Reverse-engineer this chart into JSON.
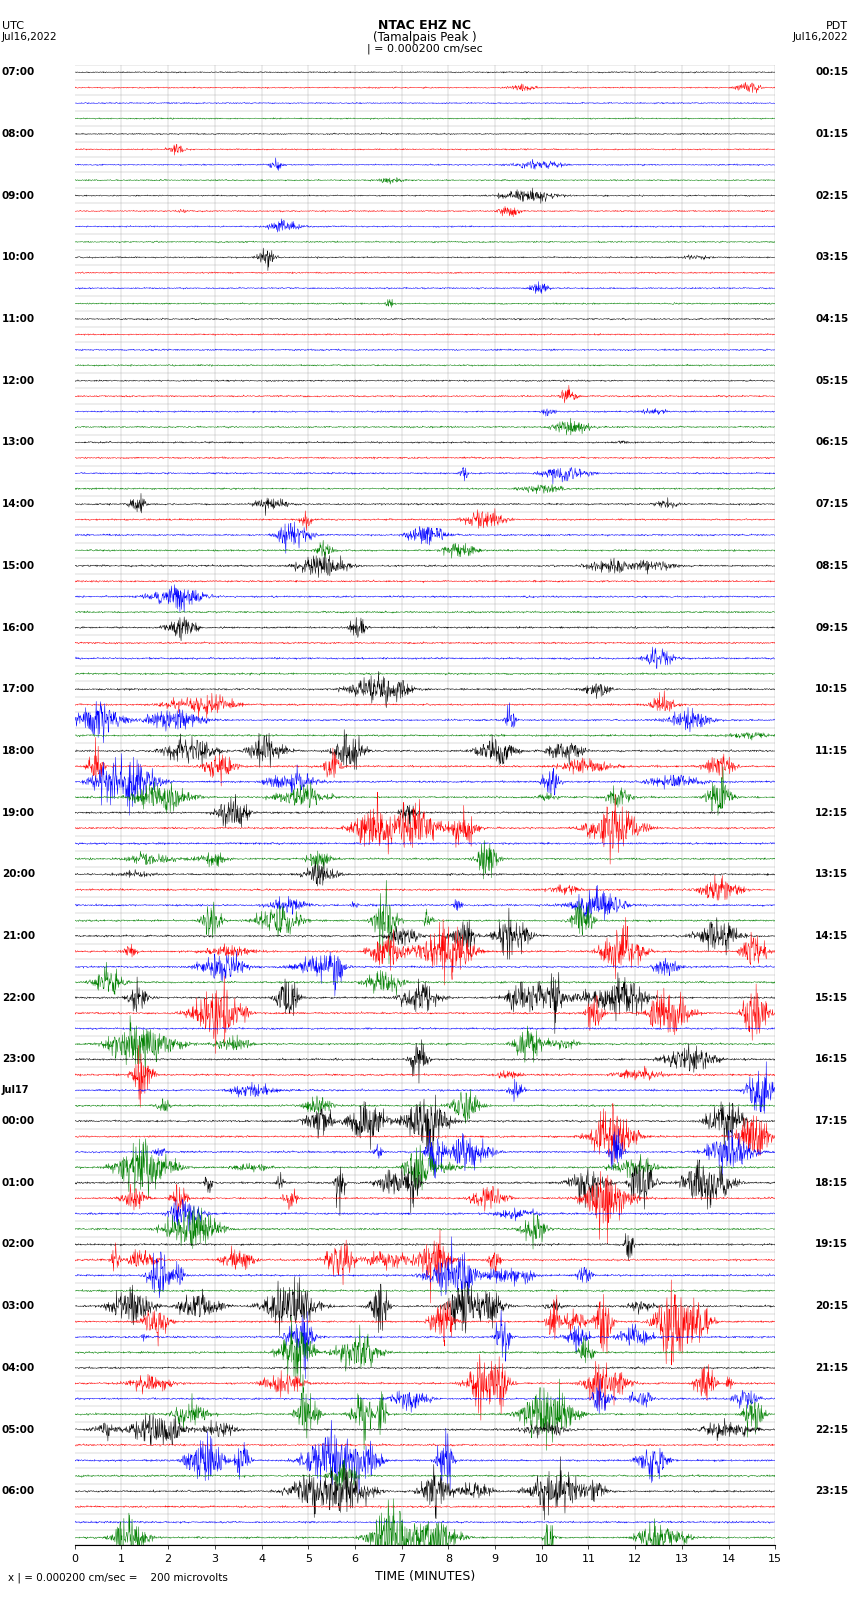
{
  "title_line1": "NTAC EHZ NC",
  "title_line2": "(Tamalpais Peak )",
  "scale_label": "| = 0.000200 cm/sec",
  "left_date": "Jul16,2022",
  "right_date": "Jul16,2022",
  "left_tz": "UTC",
  "right_tz": "PDT",
  "xlabel": "TIME (MINUTES)",
  "bottom_label": "x | = 0.000200 cm/sec =    200 microvolts",
  "xlim": [
    0,
    15
  ],
  "xticks": [
    0,
    1,
    2,
    3,
    4,
    5,
    6,
    7,
    8,
    9,
    10,
    11,
    12,
    13,
    14,
    15
  ],
  "n_rows": 96,
  "colors_cycle": [
    "black",
    "red",
    "blue",
    "green"
  ],
  "background_color": "white",
  "grid_color": "#999999",
  "left_times": [
    "07:00",
    "",
    "",
    "",
    "08:00",
    "",
    "",
    "",
    "09:00",
    "",
    "",
    "",
    "10:00",
    "",
    "",
    "",
    "11:00",
    "",
    "",
    "",
    "12:00",
    "",
    "",
    "",
    "13:00",
    "",
    "",
    "",
    "14:00",
    "",
    "",
    "",
    "15:00",
    "",
    "",
    "",
    "16:00",
    "",
    "",
    "",
    "17:00",
    "",
    "",
    "",
    "18:00",
    "",
    "",
    "",
    "19:00",
    "",
    "",
    "",
    "20:00",
    "",
    "",
    "",
    "21:00",
    "",
    "",
    "",
    "22:00",
    "",
    "",
    "",
    "23:00",
    "",
    "Jul17",
    "",
    "00:00",
    "",
    "",
    "",
    "01:00",
    "",
    "",
    "",
    "02:00",
    "",
    "",
    "",
    "03:00",
    "",
    "",
    "",
    "04:00",
    "",
    "",
    "",
    "05:00",
    "",
    "",
    "",
    "06:00",
    ""
  ],
  "right_times": [
    "00:15",
    "",
    "",
    "",
    "01:15",
    "",
    "",
    "",
    "02:15",
    "",
    "",
    "",
    "03:15",
    "",
    "",
    "",
    "04:15",
    "",
    "",
    "",
    "05:15",
    "",
    "",
    "",
    "06:15",
    "",
    "",
    "",
    "07:15",
    "",
    "",
    "",
    "08:15",
    "",
    "",
    "",
    "09:15",
    "",
    "",
    "",
    "10:15",
    "",
    "",
    "",
    "11:15",
    "",
    "",
    "",
    "12:15",
    "",
    "",
    "",
    "13:15",
    "",
    "",
    "",
    "14:15",
    "",
    "",
    "",
    "15:15",
    "",
    "",
    "",
    "16:15",
    "",
    "",
    "",
    "17:15",
    "",
    "",
    "",
    "18:15",
    "",
    "",
    "",
    "19:15",
    "",
    "",
    "",
    "20:15",
    "",
    "",
    "",
    "21:15",
    "",
    "",
    "",
    "22:15",
    "",
    "",
    "",
    "23:15",
    ""
  ],
  "seed": 42
}
